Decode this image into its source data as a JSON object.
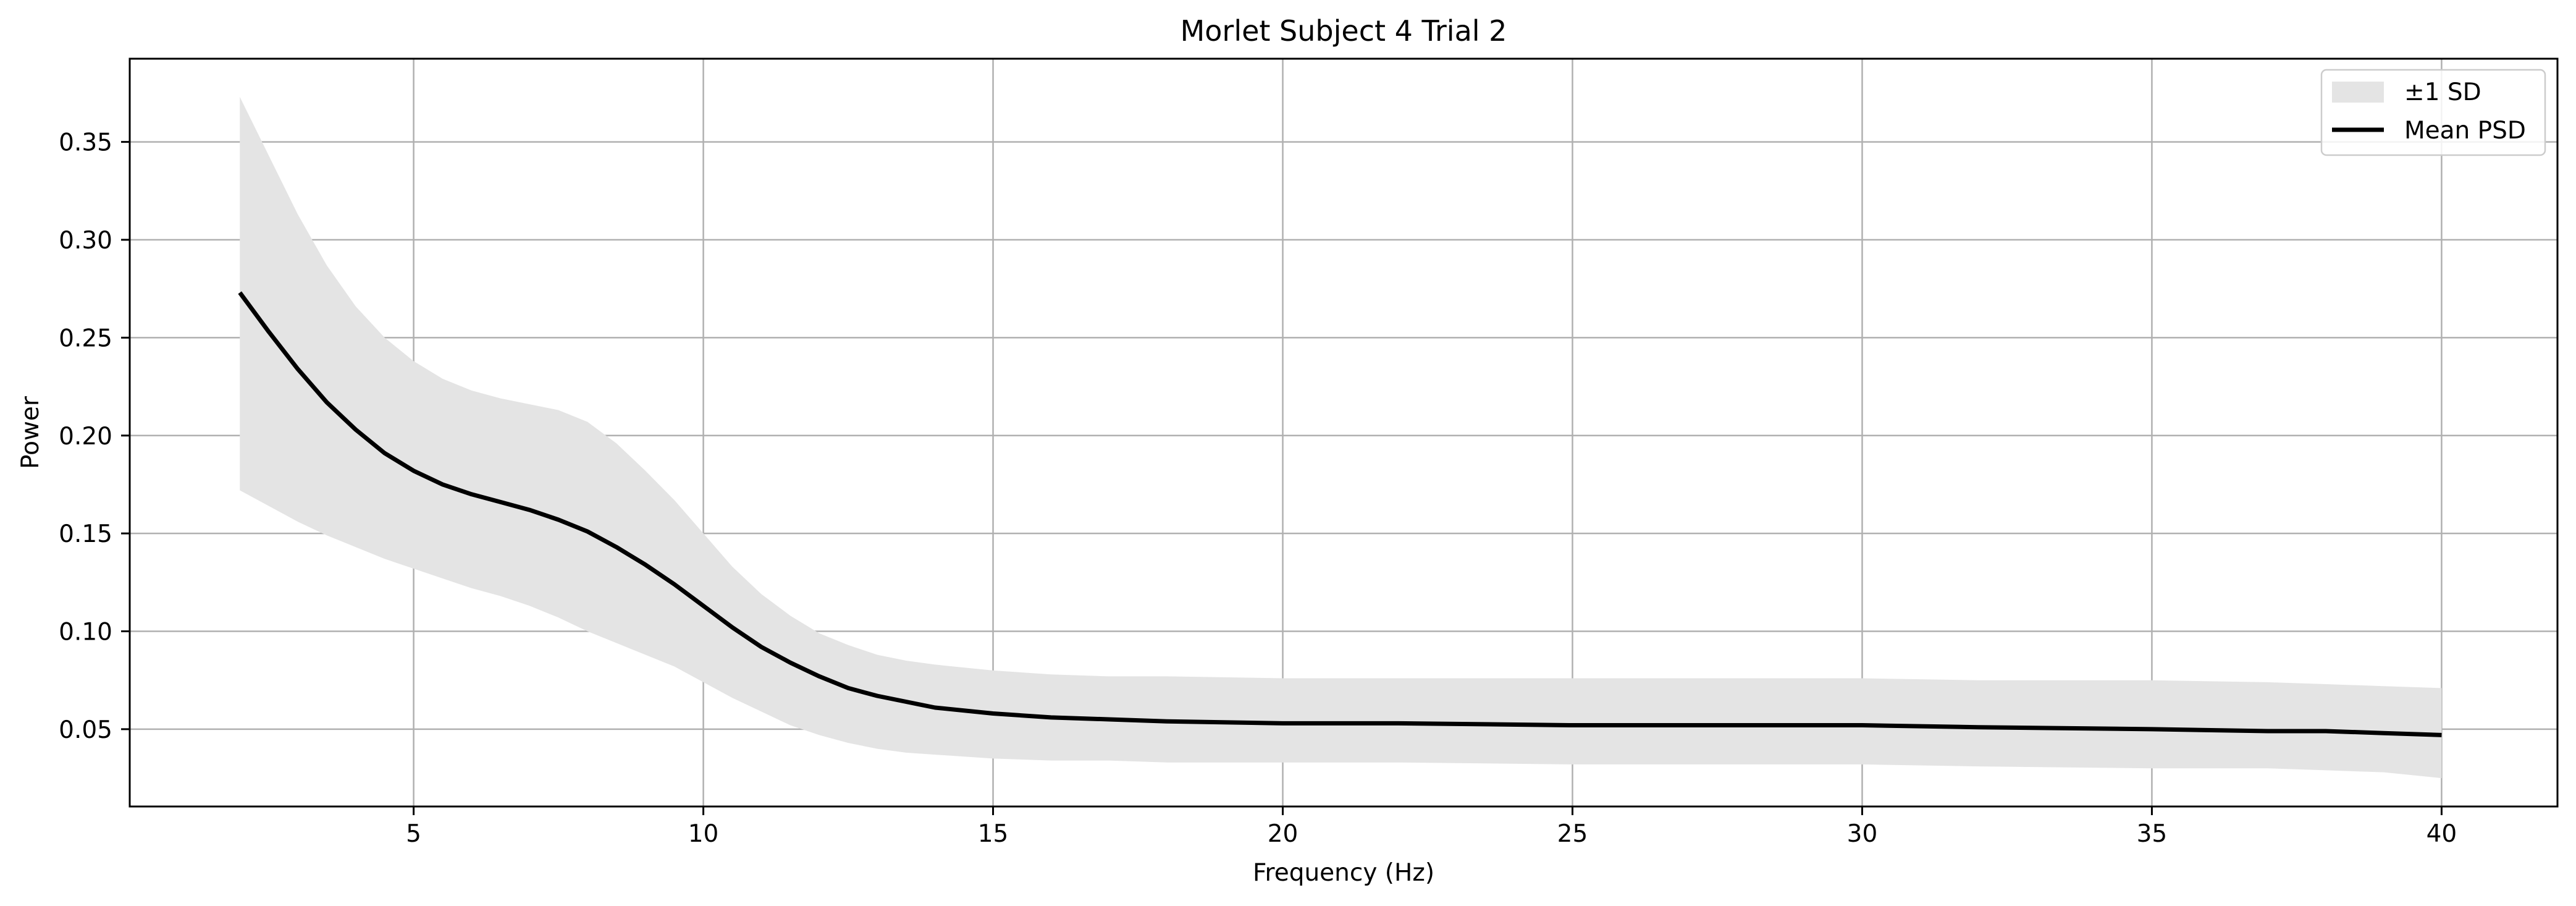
{
  "chart_data": {
    "type": "line",
    "title": "Morlet Subject 4 Trial 2",
    "xlabel": "Frequency (Hz)",
    "ylabel": "Power",
    "xlim": [
      0.1,
      42.0
    ],
    "ylim": [
      0.0105,
      0.3925
    ],
    "xticks": [
      5,
      10,
      15,
      20,
      25,
      30,
      35,
      40
    ],
    "yticks": [
      0.05,
      0.1,
      0.15,
      0.2,
      0.25,
      0.3,
      0.35
    ],
    "grid": true,
    "legend_position": "top-right",
    "colors": {
      "mean_line": "#000000",
      "band_fill": "#e4e4e4",
      "grid": "#b0b0b0"
    },
    "x": [
      2,
      2.5,
      3,
      3.5,
      4,
      4.5,
      5,
      5.5,
      6,
      6.5,
      7,
      7.5,
      8,
      8.5,
      9,
      9.5,
      10,
      10.5,
      11,
      11.5,
      12,
      12.5,
      13,
      13.5,
      14,
      15,
      16,
      17,
      18,
      20,
      22,
      25,
      28,
      30,
      32,
      35,
      37,
      38,
      39,
      40
    ],
    "series": [
      {
        "name": "Mean PSD",
        "values": [
          0.273,
          0.253,
          0.234,
          0.217,
          0.203,
          0.191,
          0.182,
          0.175,
          0.17,
          0.166,
          0.162,
          0.157,
          0.151,
          0.143,
          0.134,
          0.124,
          0.113,
          0.102,
          0.092,
          0.084,
          0.077,
          0.071,
          0.067,
          0.064,
          0.061,
          0.058,
          0.056,
          0.055,
          0.054,
          0.053,
          0.053,
          0.052,
          0.052,
          0.052,
          0.051,
          0.05,
          0.049,
          0.049,
          0.048,
          0.047
        ]
      },
      {
        "name": "±1 SD",
        "type": "band",
        "upper": [
          0.373,
          0.343,
          0.313,
          0.287,
          0.266,
          0.25,
          0.238,
          0.229,
          0.223,
          0.219,
          0.216,
          0.213,
          0.207,
          0.196,
          0.182,
          0.167,
          0.15,
          0.133,
          0.119,
          0.108,
          0.099,
          0.093,
          0.088,
          0.085,
          0.083,
          0.08,
          0.078,
          0.077,
          0.077,
          0.076,
          0.076,
          0.076,
          0.076,
          0.076,
          0.075,
          0.075,
          0.074,
          0.073,
          0.072,
          0.071
        ],
        "lower": [
          0.172,
          0.164,
          0.156,
          0.149,
          0.143,
          0.137,
          0.132,
          0.127,
          0.122,
          0.118,
          0.113,
          0.107,
          0.1,
          0.094,
          0.088,
          0.082,
          0.074,
          0.066,
          0.059,
          0.052,
          0.047,
          0.043,
          0.04,
          0.038,
          0.037,
          0.035,
          0.034,
          0.034,
          0.033,
          0.033,
          0.033,
          0.032,
          0.032,
          0.032,
          0.031,
          0.03,
          0.03,
          0.029,
          0.028,
          0.025
        ]
      }
    ]
  }
}
